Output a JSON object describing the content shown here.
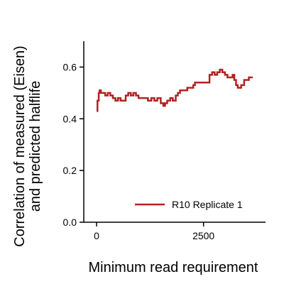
{
  "chart_data": {
    "type": "line",
    "title": "",
    "xlabel": "Minimum read requirement",
    "ylabel_lines": [
      "Correlation of measured (Eisen)",
      "and predicted halflife"
    ],
    "xlim": [
      -300,
      3950
    ],
    "ylim": [
      0,
      0.7
    ],
    "xticks": [
      0,
      2500
    ],
    "yticks": [
      0.0,
      0.2,
      0.4,
      0.6
    ],
    "xtick_labels": [
      "0",
      "2500"
    ],
    "ytick_labels": [
      "0.0",
      "0.2",
      "0.4",
      "0.6"
    ],
    "grid": false,
    "legend_position": "lower-right",
    "series": [
      {
        "name": "R10 Replicate 1",
        "color": "#b22222",
        "x": [
          0,
          20,
          50,
          70,
          100,
          150,
          200,
          260,
          320,
          380,
          440,
          500,
          560,
          620,
          680,
          740,
          800,
          860,
          920,
          980,
          1050,
          1120,
          1200,
          1280,
          1350,
          1420,
          1500,
          1560,
          1600,
          1650,
          1720,
          1780,
          1850,
          1900,
          1950,
          2000,
          2060,
          2120,
          2200,
          2260,
          2300,
          2400,
          2500,
          2600,
          2640,
          2700,
          2760,
          2820,
          2880,
          2940,
          3000,
          3060,
          3120,
          3180,
          3220,
          3260,
          3300,
          3380,
          3450,
          3500,
          3560,
          3650
        ],
        "y": [
          0.43,
          0.47,
          0.5,
          0.51,
          0.5,
          0.5,
          0.49,
          0.5,
          0.49,
          0.48,
          0.47,
          0.48,
          0.47,
          0.47,
          0.49,
          0.5,
          0.49,
          0.5,
          0.49,
          0.48,
          0.48,
          0.48,
          0.47,
          0.48,
          0.47,
          0.48,
          0.46,
          0.45,
          0.46,
          0.47,
          0.48,
          0.47,
          0.49,
          0.5,
          0.51,
          0.51,
          0.51,
          0.52,
          0.52,
          0.53,
          0.54,
          0.54,
          0.54,
          0.54,
          0.57,
          0.58,
          0.57,
          0.58,
          0.59,
          0.58,
          0.57,
          0.56,
          0.56,
          0.57,
          0.55,
          0.53,
          0.52,
          0.53,
          0.55,
          0.55,
          0.56,
          0.56
        ]
      }
    ]
  }
}
